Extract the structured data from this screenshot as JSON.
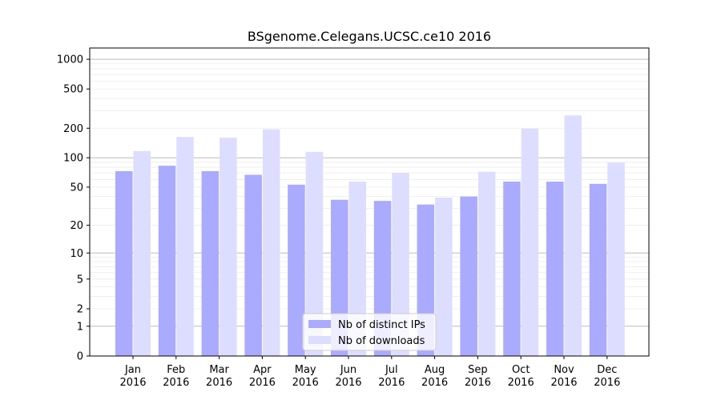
{
  "chart_data": {
    "type": "bar",
    "title": "BSgenome.Celegans.UCSC.ce10 2016",
    "xlabel": "",
    "ylabel": "",
    "y_scale": "log(1+y)",
    "ylim": [
      0,
      1300
    ],
    "y_ticks": [
      0,
      1,
      2,
      5,
      10,
      20,
      50,
      100,
      200,
      500,
      1000
    ],
    "grid": true,
    "legend_position": "bottom-center",
    "categories": [
      [
        "Jan",
        "2016"
      ],
      [
        "Feb",
        "2016"
      ],
      [
        "Mar",
        "2016"
      ],
      [
        "Apr",
        "2016"
      ],
      [
        "May",
        "2016"
      ],
      [
        "Jun",
        "2016"
      ],
      [
        "Jul",
        "2016"
      ],
      [
        "Aug",
        "2016"
      ],
      [
        "Sep",
        "2016"
      ],
      [
        "Oct",
        "2016"
      ],
      [
        "Nov",
        "2016"
      ],
      [
        "Dec",
        "2016"
      ]
    ],
    "series": [
      {
        "name": "Nb of distinct IPs",
        "color": "#aaaaff",
        "values": [
          73,
          83,
          73,
          67,
          53,
          37,
          36,
          33,
          40,
          57,
          57,
          54
        ]
      },
      {
        "name": "Nb of downloads",
        "color": "#ddddff",
        "values": [
          117,
          163,
          160,
          195,
          115,
          57,
          70,
          39,
          72,
          198,
          270,
          89
        ]
      }
    ]
  }
}
